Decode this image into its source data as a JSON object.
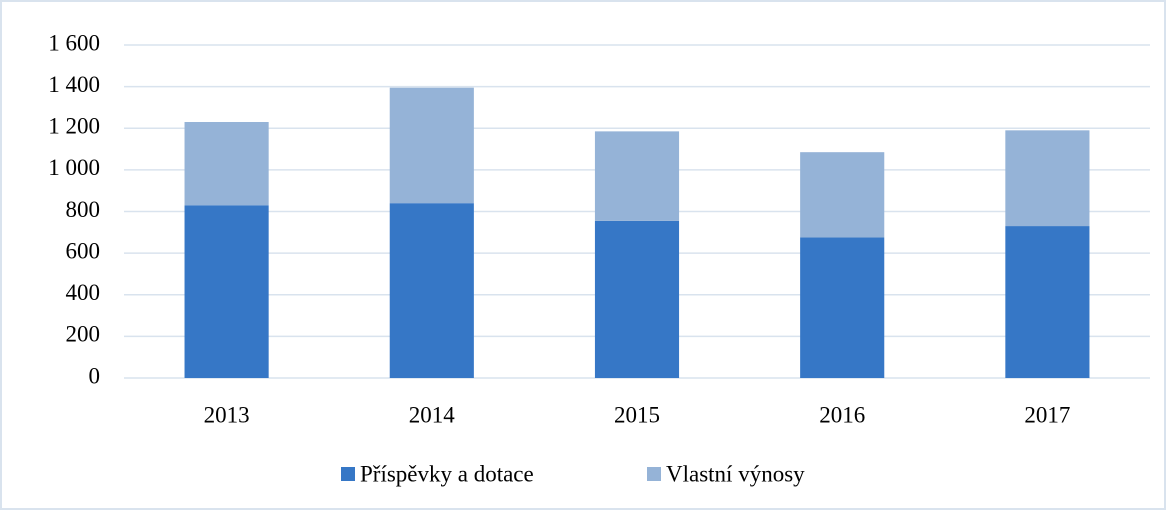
{
  "chart_data": {
    "type": "stacked_bar",
    "categories": [
      "2013",
      "2014",
      "2015",
      "2016",
      "2017"
    ],
    "series": [
      {
        "name": "Příspěvky a dotace",
        "color": "#3677c6",
        "values": [
          830,
          840,
          755,
          675,
          730
        ]
      },
      {
        "name": "Vlastní výnosy",
        "color": "#95b3d7",
        "values": [
          400,
          555,
          430,
          410,
          460
        ]
      }
    ],
    "ylim": [
      0,
      1600
    ],
    "yticks": [
      0,
      200,
      400,
      600,
      800,
      {
        "value": 1000,
        "label": "1 000"
      },
      {
        "value": 1200,
        "label": "1 200"
      },
      {
        "value": 1400,
        "label": "1 400"
      },
      {
        "value": 1600,
        "label": "1 600"
      }
    ],
    "grid": true,
    "legend": "bottom"
  }
}
